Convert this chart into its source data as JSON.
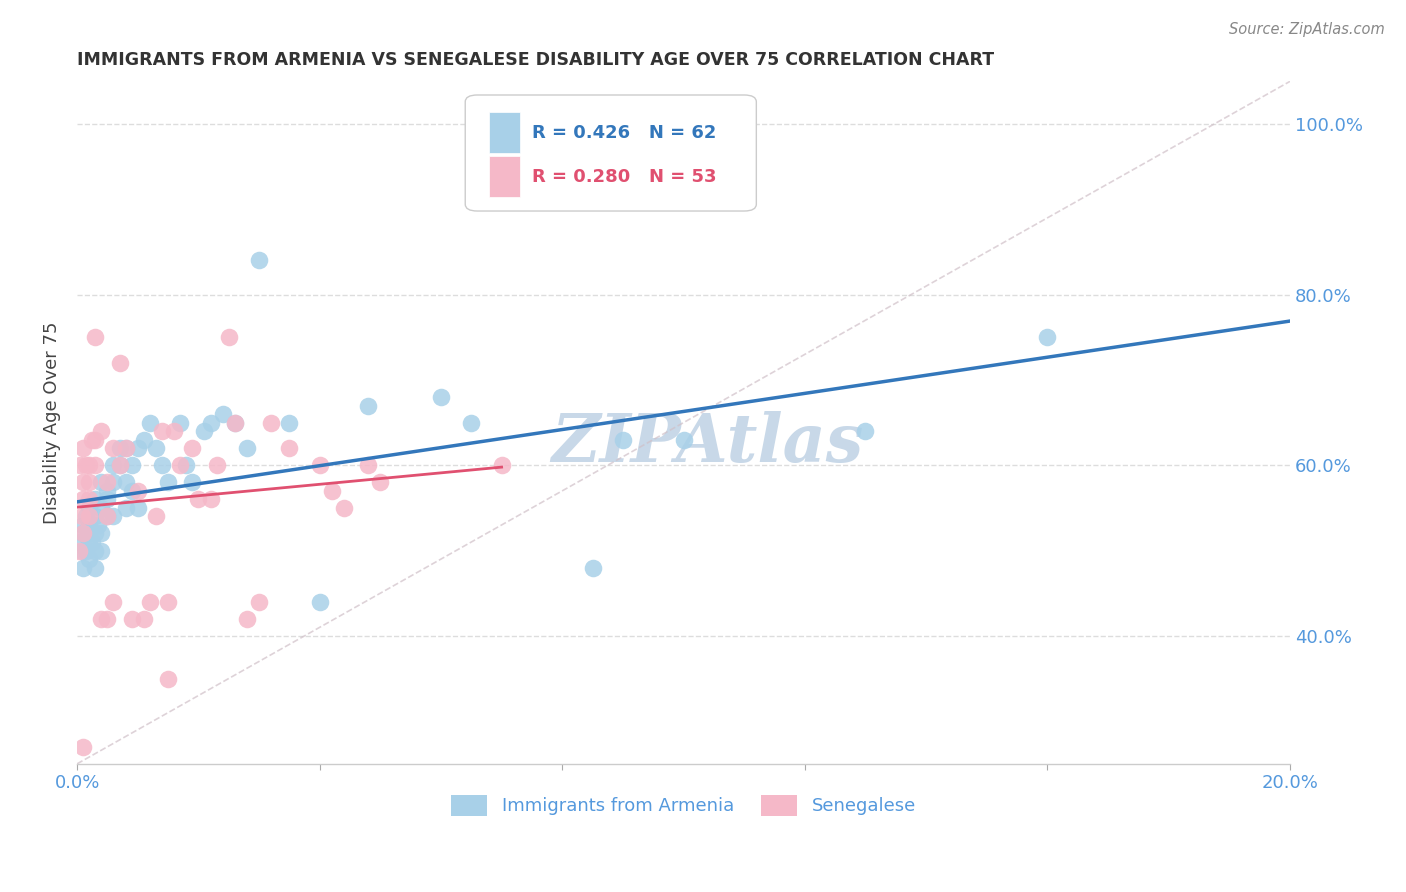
{
  "title": "IMMIGRANTS FROM ARMENIA VS SENEGALESE DISABILITY AGE OVER 75 CORRELATION CHART",
  "source": "Source: ZipAtlas.com",
  "ylabel_label": "Disability Age Over 75",
  "legend1_label": "Immigrants from Armenia",
  "legend2_label": "Senegalese",
  "r1": 0.426,
  "n1": 62,
  "r2": 0.28,
  "n2": 53,
  "color_armenia": "#A8D0E8",
  "color_senegal": "#F5B8C8",
  "color_armenia_line": "#3377BB",
  "color_senegal_line": "#E05070",
  "color_diag": "#D0C0C8",
  "xlim": [
    0.0,
    0.2
  ],
  "ylim": [
    0.25,
    1.05
  ],
  "xticks": [
    0.0,
    0.04,
    0.08,
    0.12,
    0.16,
    0.2
  ],
  "yticks": [
    0.4,
    0.6,
    0.8,
    1.0
  ],
  "ytick_labels": [
    "40.0%",
    "60.0%",
    "80.0%",
    "100.0%"
  ],
  "armenia_x": [
    0.0005,
    0.0008,
    0.001,
    0.001,
    0.001,
    0.0015,
    0.0015,
    0.002,
    0.002,
    0.002,
    0.002,
    0.002,
    0.0025,
    0.003,
    0.003,
    0.003,
    0.003,
    0.003,
    0.0035,
    0.004,
    0.004,
    0.004,
    0.004,
    0.005,
    0.005,
    0.005,
    0.006,
    0.006,
    0.006,
    0.007,
    0.007,
    0.008,
    0.008,
    0.008,
    0.009,
    0.009,
    0.01,
    0.01,
    0.011,
    0.012,
    0.013,
    0.014,
    0.015,
    0.017,
    0.018,
    0.019,
    0.021,
    0.022,
    0.024,
    0.026,
    0.028,
    0.03,
    0.035,
    0.04,
    0.048,
    0.06,
    0.065,
    0.085,
    0.09,
    0.1,
    0.13,
    0.16
  ],
  "armenia_y": [
    0.51,
    0.5,
    0.48,
    0.52,
    0.53,
    0.5,
    0.54,
    0.49,
    0.51,
    0.52,
    0.53,
    0.55,
    0.51,
    0.5,
    0.52,
    0.54,
    0.56,
    0.48,
    0.53,
    0.55,
    0.52,
    0.58,
    0.5,
    0.57,
    0.54,
    0.56,
    0.58,
    0.54,
    0.6,
    0.6,
    0.62,
    0.58,
    0.55,
    0.62,
    0.57,
    0.6,
    0.62,
    0.55,
    0.63,
    0.65,
    0.62,
    0.6,
    0.58,
    0.65,
    0.6,
    0.58,
    0.64,
    0.65,
    0.66,
    0.65,
    0.62,
    0.84,
    0.65,
    0.44,
    0.67,
    0.68,
    0.65,
    0.48,
    0.63,
    0.63,
    0.64,
    0.75
  ],
  "senegal_x": [
    0.0003,
    0.0005,
    0.0008,
    0.001,
    0.001,
    0.001,
    0.001,
    0.001,
    0.0015,
    0.002,
    0.002,
    0.002,
    0.002,
    0.0025,
    0.003,
    0.003,
    0.003,
    0.004,
    0.004,
    0.005,
    0.005,
    0.005,
    0.006,
    0.006,
    0.007,
    0.007,
    0.008,
    0.009,
    0.01,
    0.011,
    0.012,
    0.013,
    0.014,
    0.015,
    0.015,
    0.016,
    0.017,
    0.019,
    0.02,
    0.022,
    0.023,
    0.025,
    0.026,
    0.028,
    0.03,
    0.032,
    0.035,
    0.04,
    0.042,
    0.044,
    0.048,
    0.05,
    0.07
  ],
  "senegal_y": [
    0.5,
    0.6,
    0.54,
    0.62,
    0.58,
    0.56,
    0.52,
    0.27,
    0.6,
    0.6,
    0.58,
    0.56,
    0.54,
    0.63,
    0.63,
    0.75,
    0.6,
    0.64,
    0.42,
    0.58,
    0.54,
    0.42,
    0.62,
    0.44,
    0.72,
    0.6,
    0.62,
    0.42,
    0.57,
    0.42,
    0.44,
    0.54,
    0.64,
    0.35,
    0.44,
    0.64,
    0.6,
    0.62,
    0.56,
    0.56,
    0.6,
    0.75,
    0.65,
    0.42,
    0.44,
    0.65,
    0.62,
    0.6,
    0.57,
    0.55,
    0.6,
    0.58,
    0.6
  ],
  "background_color": "#FFFFFF",
  "grid_color": "#DDDDDD",
  "watermark_text": "ZIPAtlas",
  "watermark_color": "#C8D8E8",
  "watermark_fontsize": 48
}
